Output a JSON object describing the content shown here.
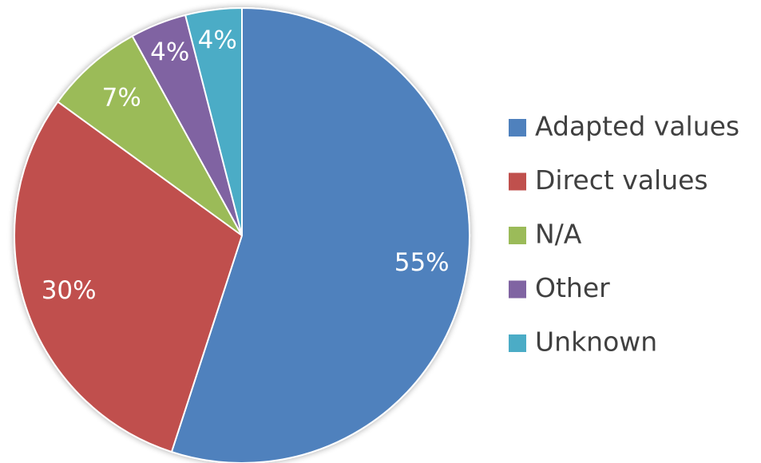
{
  "chart_data": {
    "type": "pie",
    "categories": [
      "Adapted values",
      "Direct values",
      "N/A",
      "Other",
      "Unknown"
    ],
    "values": [
      55,
      30,
      7,
      4,
      4
    ],
    "value_labels": [
      "55%",
      "30%",
      "7%",
      "4%",
      "4%"
    ],
    "colors": [
      "#4f81bd",
      "#c0504d",
      "#9bbb59",
      "#8064a2",
      "#4bacc6"
    ],
    "legend": "right"
  }
}
